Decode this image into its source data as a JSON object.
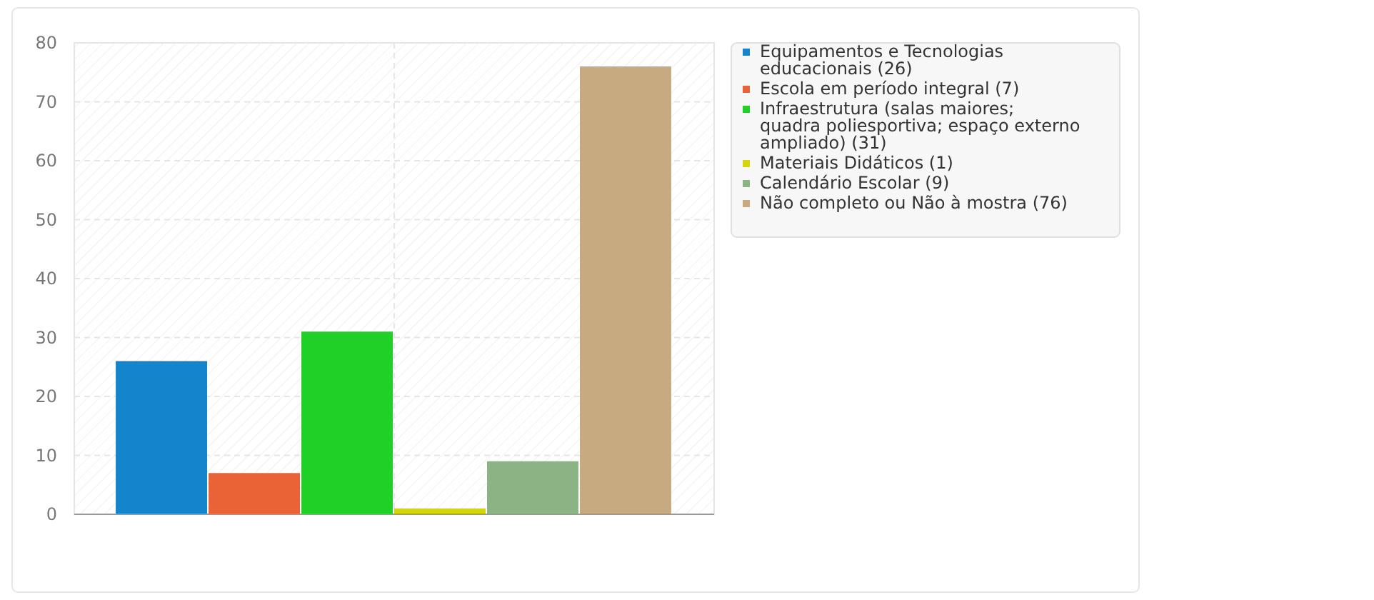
{
  "chart_data": {
    "type": "bar",
    "categories": [
      null
    ],
    "series": [
      {
        "name": "Equipamentos e Tecnologias educacionais (26)",
        "color": "#1485cc",
        "values": [
          26
        ]
      },
      {
        "name": "Escola em período integral (7)",
        "color": "#ea6337",
        "values": [
          7
        ]
      },
      {
        "name": "Infraestrutura (salas maiores; quadra poliesportiva; espaço externo ampliado) (31)",
        "color": "#21d026",
        "values": [
          31
        ]
      },
      {
        "name": "Materiais Didáticos (1)",
        "color": "#d5d50c",
        "values": [
          1
        ]
      },
      {
        "name": "Calendário Escolar (9)",
        "color": "#8bb384",
        "values": [
          9
        ]
      },
      {
        "name": "Não completo ou Não à mostra (76)",
        "color": "#c8aa81",
        "values": [
          76
        ]
      }
    ],
    "ylim": [
      0,
      80
    ],
    "yticks": [
      0,
      10,
      20,
      30,
      40,
      50,
      60,
      70,
      80
    ],
    "grid": true,
    "legend": "right"
  }
}
